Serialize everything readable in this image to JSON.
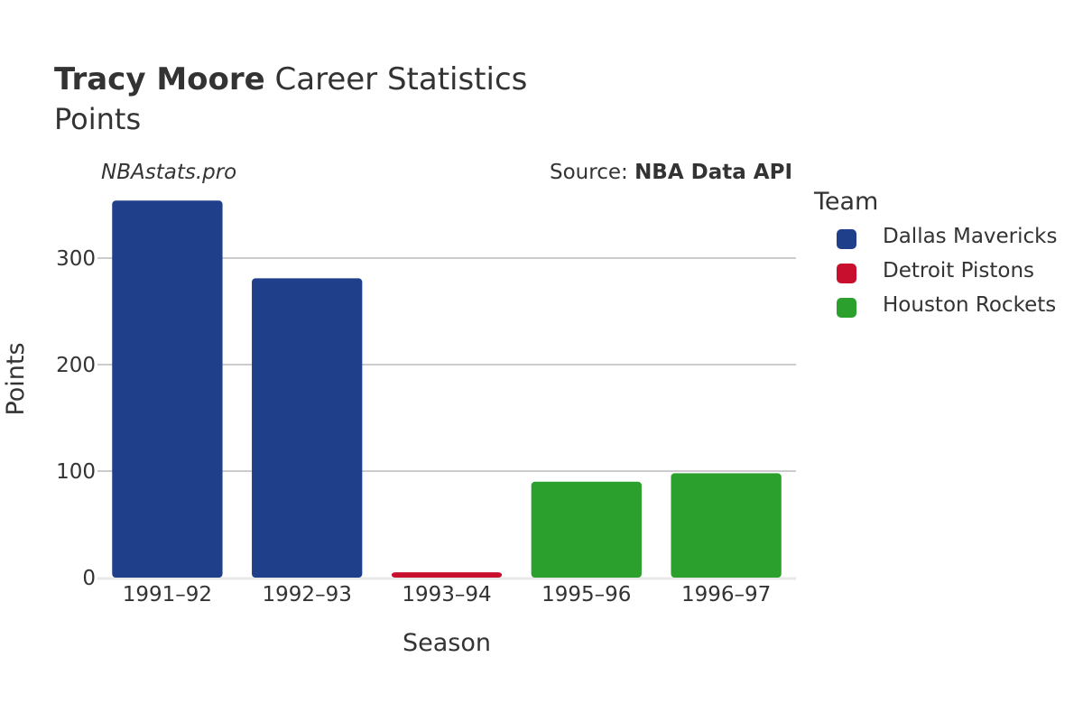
{
  "header": {
    "title_bold": "Tracy Moore",
    "title_rest": " Career Statistics",
    "subtitle": "Points"
  },
  "watermark": "NBAstats.pro",
  "source": {
    "prefix": "Source: ",
    "name": "NBA Data API"
  },
  "legend": {
    "title": "Team",
    "items": [
      {
        "label": "Dallas Mavericks",
        "color": "#1f3f8a"
      },
      {
        "label": "Detroit Pistons",
        "color": "#c8102e"
      },
      {
        "label": "Houston Rockets",
        "color": "#2ca02c"
      }
    ]
  },
  "chart_data": {
    "type": "bar",
    "categories": [
      "1991–92",
      "1992–93",
      "1993–94",
      "1995–96",
      "1996–97"
    ],
    "values": [
      354,
      281,
      5,
      90,
      98
    ],
    "teams": [
      "Dallas Mavericks",
      "Dallas Mavericks",
      "Detroit Pistons",
      "Houston Rockets",
      "Houston Rockets"
    ],
    "xlabel": "Season",
    "ylabel": "Points",
    "ylim": [
      0,
      360
    ],
    "yticks": [
      0,
      100,
      200,
      300
    ],
    "grid": true,
    "legend_position": "right"
  }
}
